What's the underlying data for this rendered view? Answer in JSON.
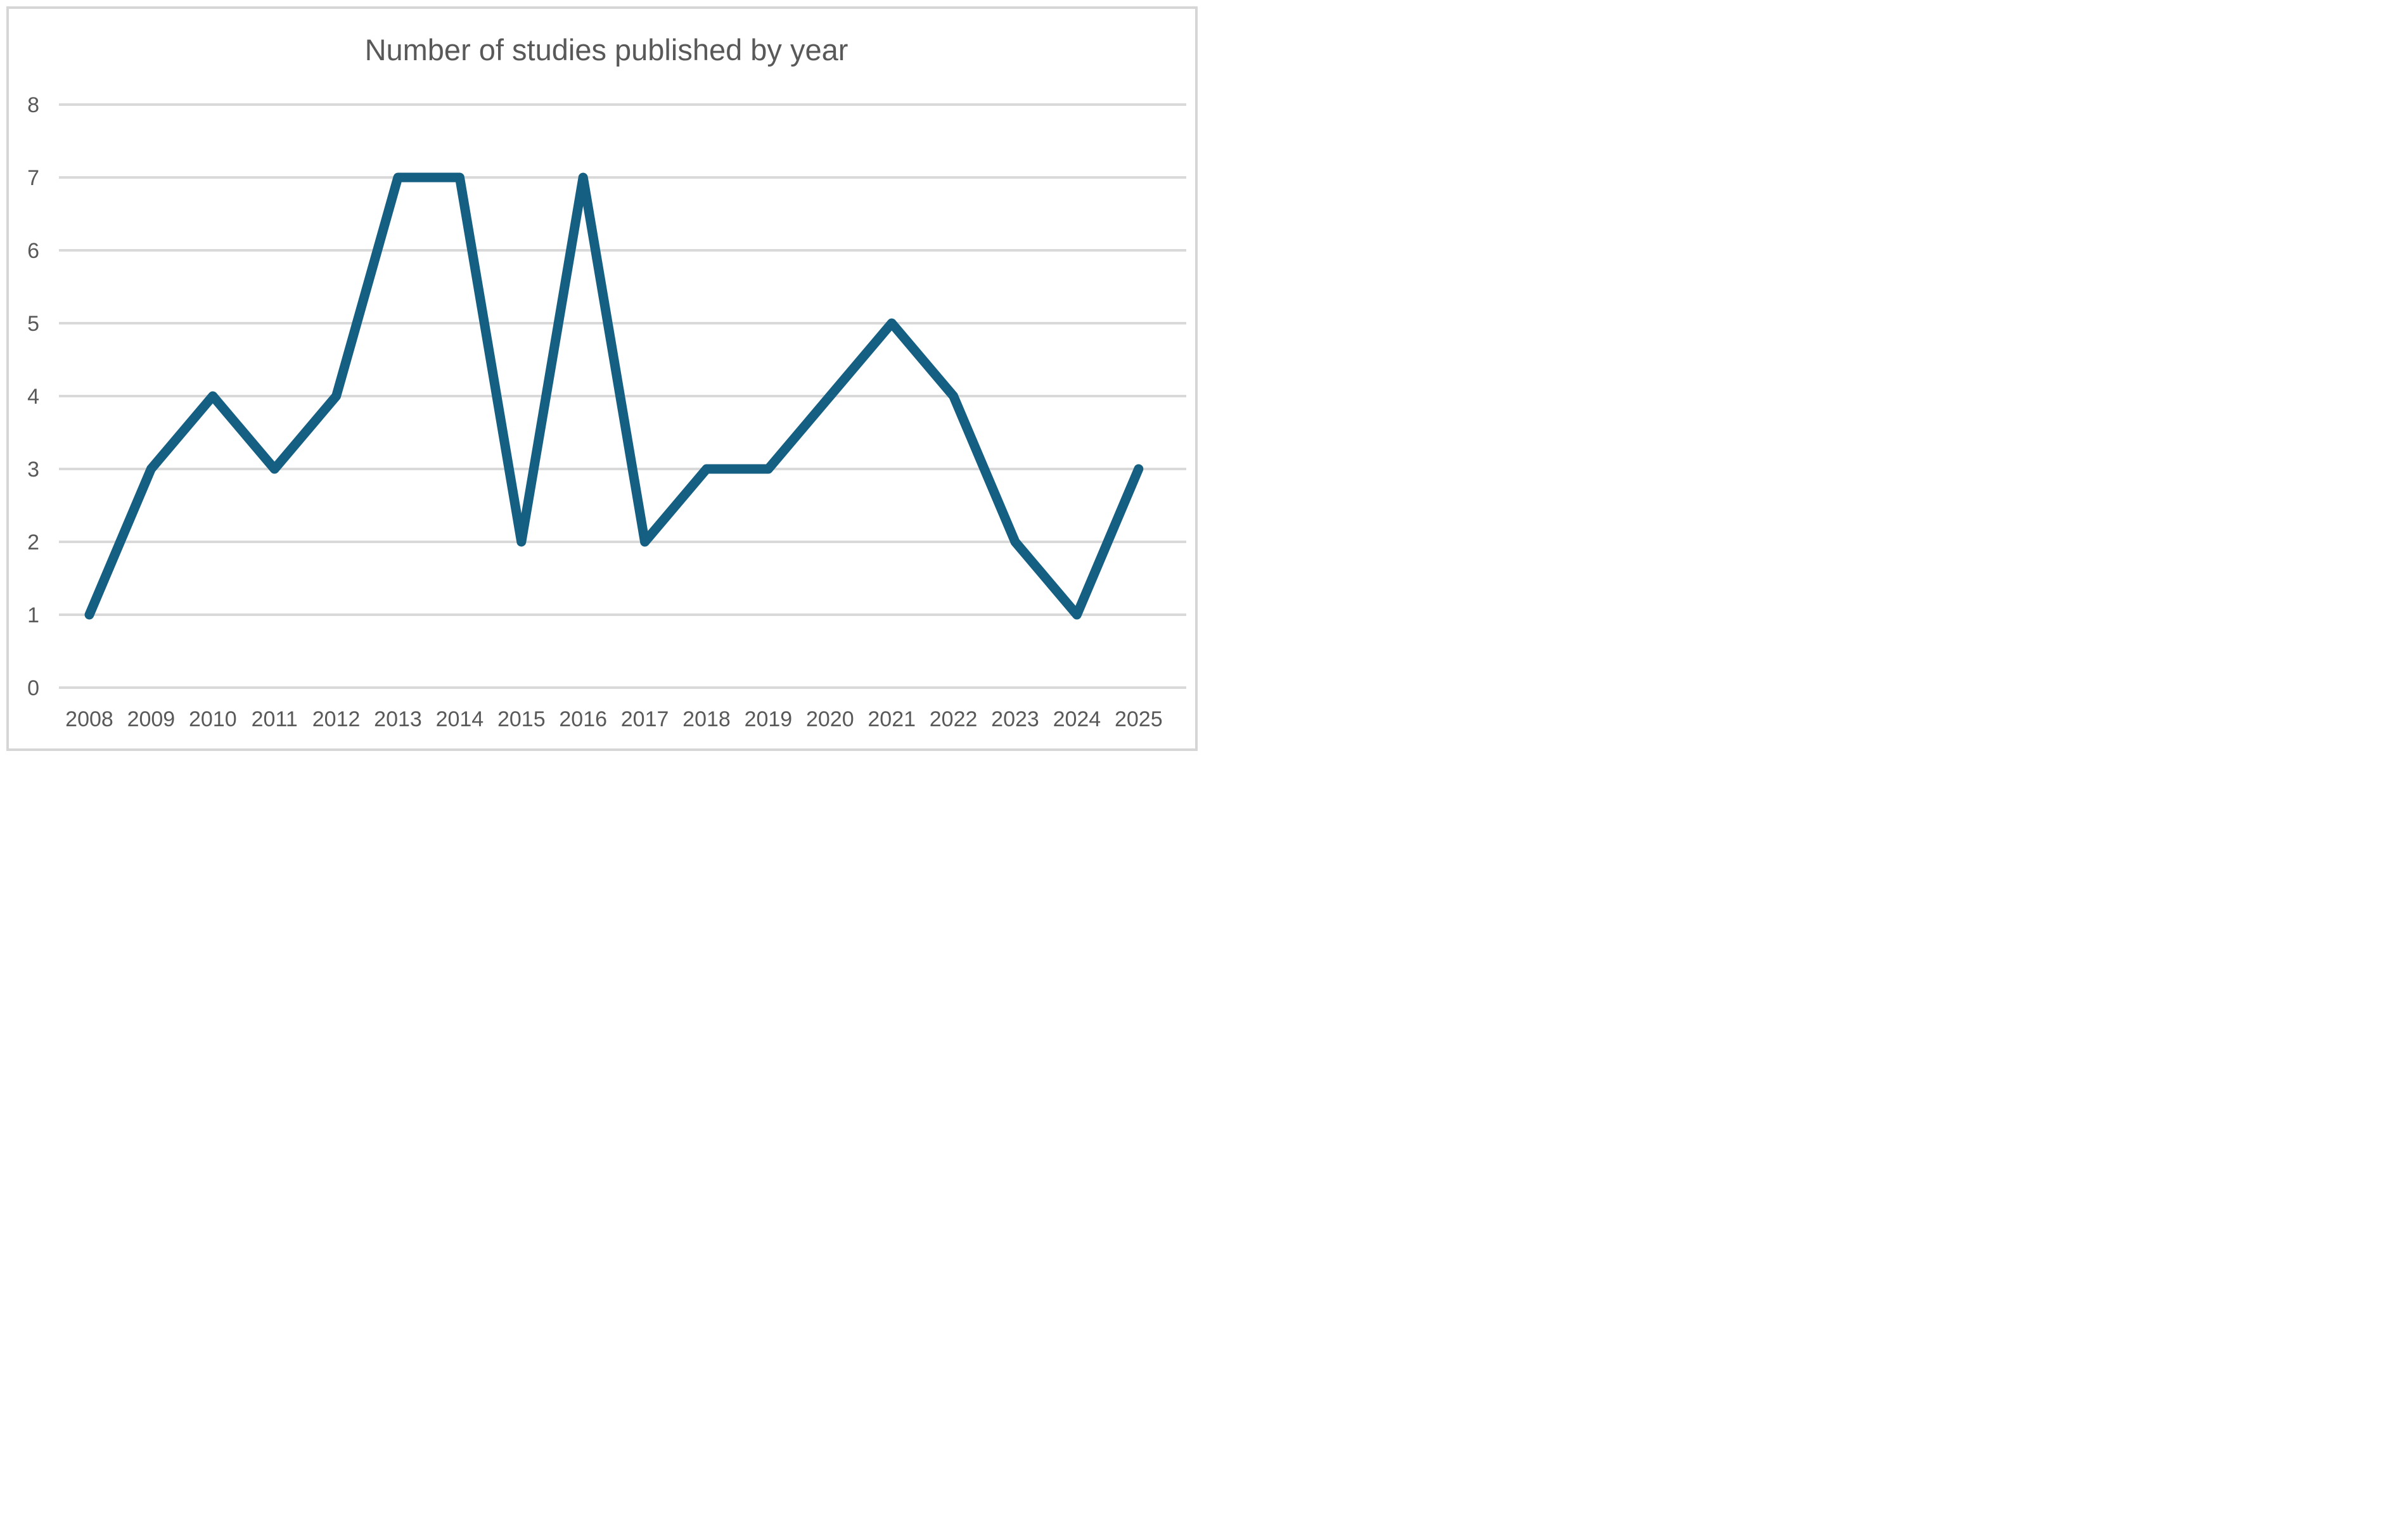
{
  "chart_data": {
    "type": "line",
    "title": "Number of studies published by year",
    "categories": [
      "2008",
      "2009",
      "2010",
      "2011",
      "2012",
      "2013",
      "2014",
      "2015",
      "2016",
      "2017",
      "2018",
      "2019",
      "2020",
      "2021",
      "2022",
      "2023",
      "2024",
      "2025"
    ],
    "series": [
      {
        "name": "Number of studies",
        "values": [
          1,
          3,
          4,
          3,
          4,
          7,
          7,
          2,
          7,
          2,
          3,
          3,
          4,
          5,
          4,
          2,
          1,
          3
        ]
      }
    ],
    "xlabel": "",
    "ylabel": "",
    "ylim": [
      0,
      8
    ],
    "ytick_interval": 1,
    "yticks": [
      "0",
      "1",
      "2",
      "3",
      "4",
      "5",
      "6",
      "7",
      "8"
    ],
    "grid": "horizontal-only",
    "legend_position": "none",
    "colors": {
      "line": "#156082",
      "gridline": "#d9d9d9",
      "text": "#595959",
      "frame_border": "#d6d6d6",
      "background": "#ffffff"
    }
  }
}
